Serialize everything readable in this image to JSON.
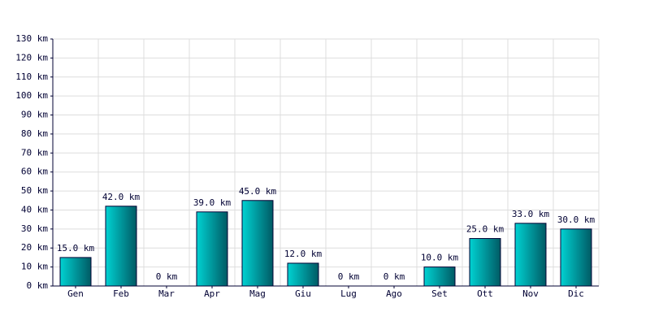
{
  "chart_data": {
    "type": "bar",
    "categories": [
      "Gen",
      "Feb",
      "Mar",
      "Apr",
      "Mag",
      "Giu",
      "Lug",
      "Ago",
      "Set",
      "Ott",
      "Nov",
      "Dic"
    ],
    "values": [
      15,
      42,
      0,
      39,
      45,
      12,
      0,
      0,
      10,
      25,
      33,
      30
    ],
    "value_labels": [
      "15.0 km",
      "42.0 km",
      "0 km",
      "39.0 km",
      "45.0 km",
      "12.0 km",
      "0 km",
      "0 km",
      "10.0 km",
      "25.0 km",
      "33.0 km",
      "30.0 km"
    ],
    "color": "#00d2d2",
    "ylim": [
      0,
      130
    ],
    "yticks": [
      {
        "value": 0,
        "label": "0 km"
      },
      {
        "value": 10,
        "label": "10 km"
      },
      {
        "value": 20,
        "label": "20 km"
      },
      {
        "value": 30,
        "label": "30 km"
      },
      {
        "value": 40,
        "label": "40 km"
      },
      {
        "value": 50,
        "label": "50 km"
      },
      {
        "value": 60,
        "label": "60 km"
      },
      {
        "value": 70,
        "label": "70 km"
      },
      {
        "value": 80,
        "label": "80 km"
      },
      {
        "value": 90,
        "label": "90 km"
      },
      {
        "value": 100,
        "label": "100 km"
      },
      {
        "value": 110,
        "label": "110 km"
      },
      {
        "value": 120,
        "label": "120 km"
      },
      {
        "value": 130,
        "label": "130 km"
      }
    ],
    "grid": true
  }
}
